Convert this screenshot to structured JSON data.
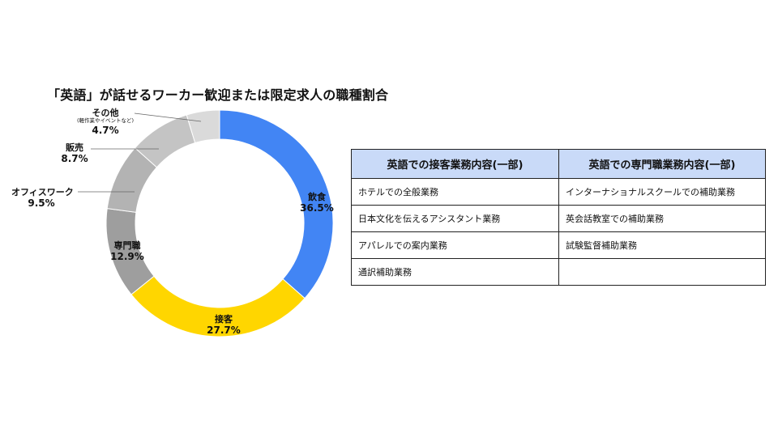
{
  "chart_data": {
    "type": "donut",
    "title": "「英語」が話せるワーカー歓迎または限定求人の職種割合",
    "slices": [
      {
        "name": "飲食",
        "value": 36.5,
        "label": "36.5%",
        "color": "#4285f4"
      },
      {
        "name": "接客",
        "value": 27.7,
        "label": "27.7%",
        "color": "#ffd600"
      },
      {
        "name": "専門職",
        "value": 12.9,
        "label": "12.9%",
        "color": "#9e9e9e"
      },
      {
        "name": "オフィスワーク",
        "value": 9.5,
        "label": "9.5%",
        "color": "#b3b3b3"
      },
      {
        "name": "販売",
        "value": 8.7,
        "label": "8.7%",
        "color": "#c4c4c4"
      },
      {
        "name": "その他",
        "note": "(軽作業やイベントなど)",
        "value": 4.7,
        "label": "4.7%",
        "color": "#dadada"
      }
    ]
  },
  "table": {
    "headers": [
      "英語での接客業務内容(一部)",
      "英語での専門職業務内容(一部)"
    ],
    "rows": [
      [
        "ホテルでの全般業務",
        "インターナショナルスクールでの補助業務"
      ],
      [
        "日本文化を伝えるアシスタント業務",
        "英会話教室での補助業務"
      ],
      [
        "アパレルでの案内業務",
        "試験監督補助業務"
      ],
      [
        "通訳補助業務",
        ""
      ]
    ]
  }
}
